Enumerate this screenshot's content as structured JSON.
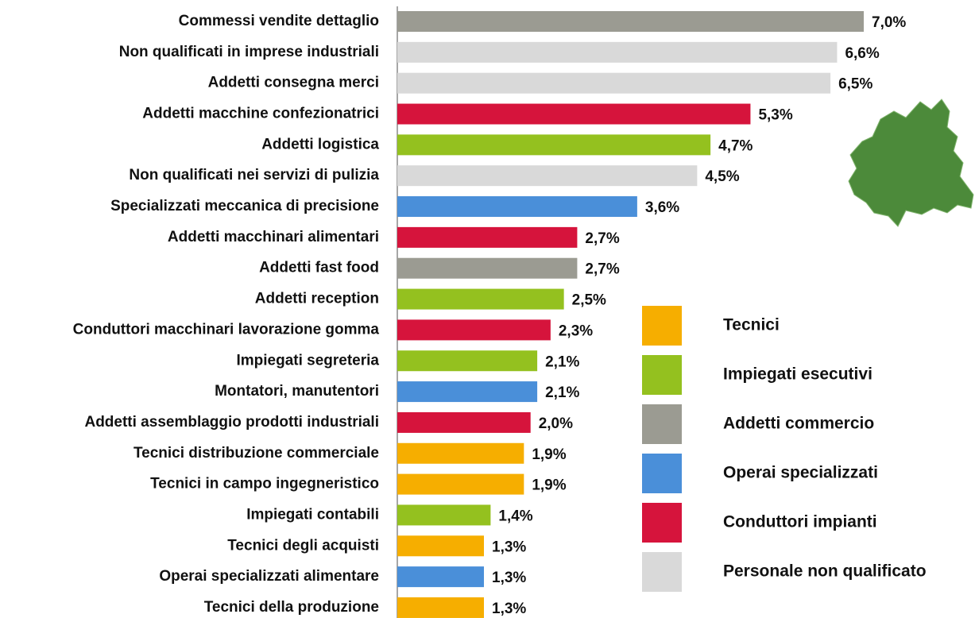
{
  "chart_data": {
    "type": "bar",
    "orientation": "horizontal",
    "categories": [
      "Commessi vendite dettaglio",
      "Non qualificati in imprese industriali",
      "Addetti consegna merci",
      "Addetti macchine confezionatrici",
      "Addetti logistica",
      "Non qualificati nei servizi di pulizia",
      "Specializzati meccanica di precisione",
      "Addetti macchinari alimentari",
      "Addetti fast food",
      "Addetti reception",
      "Conduttori macchinari lavorazione gomma",
      "Impiegati segreteria",
      "Montatori, manutentori",
      "Addetti assemblaggio prodotti industriali",
      "Tecnici distribuzione commerciale",
      "Tecnici in campo ingegneristico",
      "Impiegati contabili",
      "Tecnici degli acquisti",
      "Operai specializzati alimentare",
      "Tecnici della produzione"
    ],
    "values": [
      7.0,
      6.6,
      6.5,
      5.3,
      4.7,
      4.5,
      3.6,
      2.7,
      2.7,
      2.5,
      2.3,
      2.1,
      2.1,
      2.0,
      1.9,
      1.9,
      1.4,
      1.3,
      1.3,
      1.3
    ],
    "value_labels": [
      "7,0%",
      "6,6%",
      "6,5%",
      "5,3%",
      "4,7%",
      "4,5%",
      "3,6%",
      "2,7%",
      "2,7%",
      "2,5%",
      "2,3%",
      "2,1%",
      "2,1%",
      "2,0%",
      "1,9%",
      "1,9%",
      "1,4%",
      "1,3%",
      "1,3%",
      "1,3%"
    ],
    "colors": [
      "#9b9b92",
      "#d9d9d9",
      "#d9d9d9",
      "#d6143c",
      "#94c11f",
      "#d9d9d9",
      "#4a8fd9",
      "#d6143c",
      "#9b9b92",
      "#94c11f",
      "#d6143c",
      "#94c11f",
      "#4a8fd9",
      "#d6143c",
      "#f6ae00",
      "#f6ae00",
      "#94c11f",
      "#f6ae00",
      "#4a8fd9",
      "#f6ae00"
    ],
    "xlim": [
      0,
      7
    ],
    "legend": [
      {
        "name": "Tecnici",
        "color": "#f6ae00"
      },
      {
        "name": "Impiegati esecutivi",
        "color": "#94c11f"
      },
      {
        "name": "Addetti commercio",
        "color": "#9b9b92"
      },
      {
        "name": "Operai specializzati",
        "color": "#4a8fd9"
      },
      {
        "name": "Conduttori impianti",
        "color": "#d6143c"
      },
      {
        "name": "Personale non qualificato",
        "color": "#d9d9d9"
      }
    ]
  }
}
